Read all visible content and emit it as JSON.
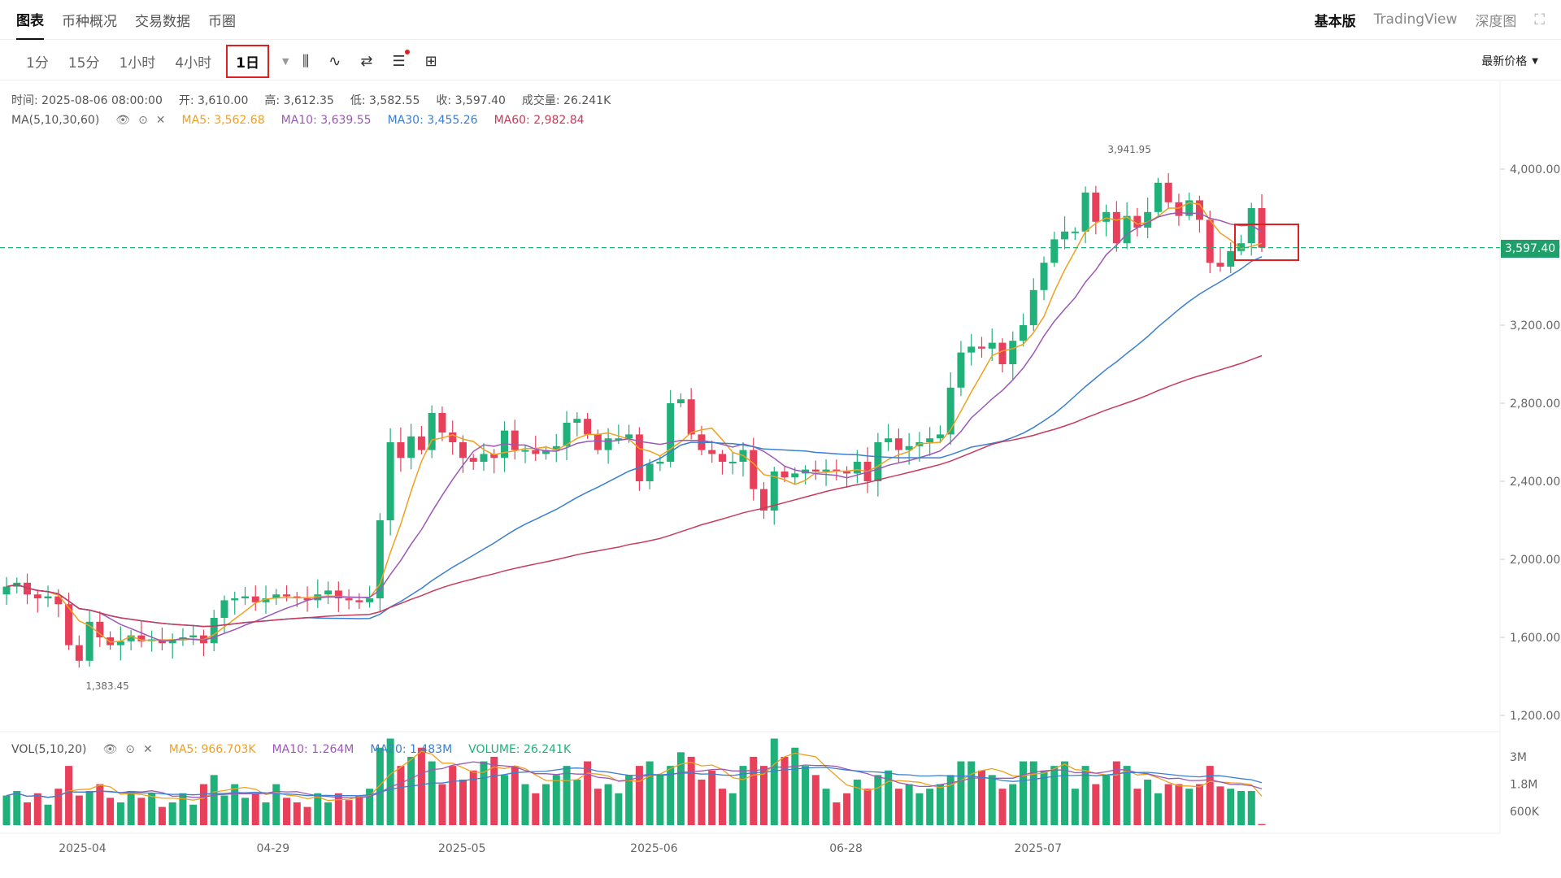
{
  "nav": {
    "tabs": [
      "图表",
      "币种概况",
      "交易数据",
      "币圈"
    ],
    "right": [
      "基本版",
      "TradingView",
      "深度图"
    ]
  },
  "toolbar": {
    "intervals": [
      "1分",
      "15分",
      "1小时",
      "4小时"
    ],
    "selected_interval": "1日",
    "price_mode": "最新价格"
  },
  "info": {
    "time_label": "时间: 2025-08-06 08:00:00",
    "open_label": "开: 3,610.00",
    "high_label": "高: 3,612.35",
    "low_label": "低: 3,582.55",
    "close_label": "收: 3,597.40",
    "volume_label": "成交量: 26.241K",
    "ma_title": "MA(5,10,30,60)",
    "ma5": "MA5: 3,562.68",
    "ma10": "MA10: 3,639.55",
    "ma30": "MA30: 3,455.26",
    "ma60": "MA60: 2,982.84"
  },
  "vol_info": {
    "title": "VOL(5,10,20)",
    "ma5": "MA5: 966.703K",
    "ma10": "MA10: 1.264M",
    "ma20": "MA20: 1.483M",
    "volume": "VOLUME: 26.241K"
  },
  "colors": {
    "up": "#20b07a",
    "down": "#e8405a",
    "ma5": "#f0a020",
    "ma10": "#9b59b6",
    "ma30": "#3b7fd0",
    "ma60": "#c83a5a"
  },
  "last_price": "3,597.40",
  "chart_data": {
    "type": "candlestick",
    "price_axis": [
      "4,000.00",
      "3,600.00",
      "3,200.00",
      "2,800.00",
      "2,400.00",
      "2,000.00",
      "1,600.00",
      "1,200.00"
    ],
    "price_ticks": [
      4000,
      3600,
      3200,
      2800,
      2400,
      2000,
      1600,
      1200
    ],
    "volume_axis": [
      "3M",
      "1.8M",
      "600K"
    ],
    "x_labels": [
      "2025-04",
      "04-29",
      "2025-05",
      "2025-06",
      "06-28",
      "2025-07"
    ],
    "high_marker": "3,941.95",
    "low_marker": "1,383.45",
    "closes": [
      1860,
      1880,
      1820,
      1800,
      1810,
      1770,
      1560,
      1480,
      1680,
      1600,
      1560,
      1580,
      1610,
      1580,
      1590,
      1570,
      1590,
      1600,
      1610,
      1570,
      1700,
      1790,
      1800,
      1810,
      1780,
      1800,
      1820,
      1810,
      1800,
      1790,
      1820,
      1840,
      1800,
      1790,
      1780,
      1800,
      2200,
      2600,
      2520,
      2630,
      2560,
      2750,
      2650,
      2600,
      2520,
      2500,
      2540,
      2520,
      2660,
      2560,
      2560,
      2540,
      2560,
      2580,
      2700,
      2720,
      2640,
      2560,
      2620,
      2620,
      2640,
      2400,
      2490,
      2500,
      2800,
      2820,
      2640,
      2560,
      2540,
      2500,
      2500,
      2560,
      2360,
      2250,
      2450,
      2420,
      2440,
      2460,
      2450,
      2460,
      2450,
      2440,
      2500,
      2400,
      2600,
      2620,
      2560,
      2580,
      2600,
      2620,
      2640,
      2880,
      3060,
      3090,
      3080,
      3110,
      3000,
      3120,
      3200,
      3380,
      3520,
      3640,
      3680,
      3680,
      3880,
      3730,
      3780,
      3620,
      3760,
      3700,
      3780,
      3930,
      3830,
      3760,
      3840,
      3740,
      3520,
      3500,
      3580,
      3620,
      3800,
      3597
    ],
    "volumes": [
      1.3,
      1.5,
      1.0,
      1.4,
      0.9,
      1.6,
      2.6,
      1.3,
      1.5,
      1.8,
      1.2,
      1.0,
      1.5,
      1.2,
      1.4,
      0.8,
      1.0,
      1.4,
      0.9,
      1.8,
      2.2,
      1.3,
      1.8,
      1.2,
      1.4,
      1.0,
      1.8,
      1.2,
      1.0,
      0.8,
      1.4,
      1.0,
      1.4,
      1.1,
      1.3,
      1.6,
      3.4,
      3.8,
      2.6,
      3.0,
      3.4,
      2.8,
      1.8,
      2.6,
      2.0,
      2.4,
      2.8,
      3.0,
      2.2,
      2.6,
      1.8,
      1.4,
      1.8,
      2.2,
      2.6,
      2.0,
      2.8,
      1.6,
      1.8,
      1.4,
      2.2,
      2.6,
      2.8,
      2.2,
      2.6,
      3.2,
      3.0,
      2.0,
      2.4,
      1.6,
      1.4,
      2.6,
      3.0,
      2.6,
      3.8,
      3.0,
      3.4,
      2.6,
      2.2,
      1.6,
      1.0,
      1.4,
      2.0,
      1.6,
      2.2,
      2.4,
      1.6,
      1.8,
      1.4,
      1.6,
      1.8,
      2.2,
      2.8,
      2.8,
      2.4,
      2.2,
      1.6,
      1.8,
      2.8,
      2.8,
      2.4,
      2.6,
      2.8,
      1.6,
      2.6,
      1.8,
      2.2,
      2.8,
      2.6,
      1.6,
      2.0,
      1.4,
      1.8,
      1.8,
      1.6,
      1.8,
      2.6,
      1.7,
      1.6,
      1.5,
      1.5,
      0.05
    ]
  }
}
